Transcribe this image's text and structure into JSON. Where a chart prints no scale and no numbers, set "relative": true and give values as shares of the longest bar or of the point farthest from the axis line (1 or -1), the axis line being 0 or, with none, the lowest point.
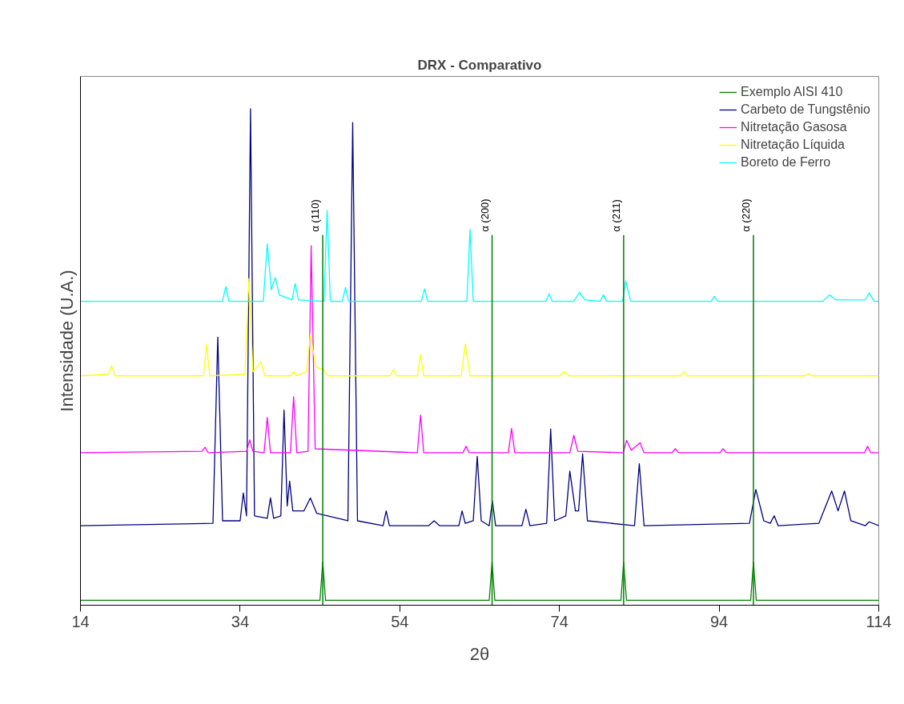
{
  "chart_data": {
    "type": "line",
    "title": "DRX - Comparativo",
    "xlabel": "2θ",
    "ylabel": "Intensidade (U.A.)",
    "relative": true,
    "xlim": [
      14,
      114
    ],
    "xticks": [
      14,
      34,
      54,
      74,
      94,
      114
    ],
    "grid": false,
    "legend": "top right",
    "marker": "none",
    "line_style": "solid",
    "series": [
      {
        "name": "Exemplo AISI 410",
        "color": "#008000",
        "x": [
          14,
          44.0,
          44.35,
          44.7,
          65.2,
          65.56,
          65.9,
          81.7,
          82.04,
          82.4,
          97.95,
          98.3,
          98.65,
          114
        ],
        "values": [
          0.01,
          0.01,
          0.087,
          0.01,
          0.01,
          0.087,
          0.01,
          0.01,
          0.087,
          0.01,
          0.01,
          0.087,
          0.01,
          0.01
        ]
      },
      {
        "name": "Carbeto de Tungstênio",
        "color": "#000080",
        "x": [
          14,
          30.6,
          31.2,
          31.8,
          34.0,
          34.4,
          34.8,
          35.3,
          35.8,
          37.4,
          37.8,
          38.2,
          39.1,
          39.5,
          39.9,
          40.2,
          40.6,
          42.0,
          42.8,
          43.6,
          47.5,
          48.1,
          48.7,
          51.9,
          52.3,
          52.7,
          57.6,
          58.3,
          59.0,
          61.4,
          61.8,
          62.2,
          63.2,
          63.7,
          64.2,
          65.2,
          65.6,
          66.0,
          69.3,
          69.8,
          70.3,
          72.4,
          72.9,
          73.4,
          74.8,
          75.3,
          76.0,
          76.4,
          76.9,
          77.5,
          83.4,
          84.0,
          84.6,
          97.8,
          98.6,
          99.6,
          100.4,
          100.9,
          101.4,
          106.5,
          108.1,
          108.9,
          109.7,
          110.5,
          112.3,
          112.8,
          114
        ],
        "values": [
          0.16,
          0.165,
          0.54,
          0.17,
          0.17,
          0.226,
          0.18,
          1.0,
          0.18,
          0.175,
          0.216,
          0.175,
          0.18,
          0.393,
          0.2,
          0.25,
          0.19,
          0.19,
          0.216,
          0.185,
          0.17,
          0.972,
          0.17,
          0.16,
          0.19,
          0.16,
          0.16,
          0.17,
          0.16,
          0.16,
          0.19,
          0.165,
          0.17,
          0.3,
          0.17,
          0.16,
          0.21,
          0.16,
          0.16,
          0.193,
          0.16,
          0.165,
          0.355,
          0.17,
          0.18,
          0.27,
          0.19,
          0.19,
          0.305,
          0.17,
          0.16,
          0.285,
          0.16,
          0.165,
          0.233,
          0.17,
          0.165,
          0.18,
          0.16,
          0.165,
          0.23,
          0.19,
          0.23,
          0.17,
          0.16,
          0.168,
          0.16
        ]
      },
      {
        "name": "Nitretação Gasosa",
        "color": "#ff00ff",
        "x": [
          14,
          29.2,
          29.6,
          30.0,
          34.8,
          35.2,
          35.6,
          37.0,
          37.4,
          37.8,
          40.3,
          40.7,
          41.1,
          42.5,
          42.9,
          43.4,
          56.2,
          56.6,
          57.0,
          61.9,
          62.3,
          62.7,
          67.6,
          68.0,
          68.4,
          75.3,
          75.8,
          76.3,
          82.0,
          82.4,
          83.0,
          84.1,
          84.6,
          88.1,
          88.5,
          88.9,
          94.1,
          94.5,
          94.9,
          112.2,
          112.6,
          113.0,
          114
        ],
        "values": [
          0.307,
          0.31,
          0.318,
          0.307,
          0.31,
          0.333,
          0.31,
          0.307,
          0.378,
          0.307,
          0.307,
          0.42,
          0.307,
          0.31,
          0.724,
          0.315,
          0.307,
          0.383,
          0.307,
          0.307,
          0.32,
          0.307,
          0.307,
          0.356,
          0.307,
          0.307,
          0.342,
          0.31,
          0.307,
          0.332,
          0.312,
          0.327,
          0.307,
          0.307,
          0.315,
          0.307,
          0.307,
          0.315,
          0.307,
          0.307,
          0.32,
          0.307,
          0.307
        ]
      },
      {
        "name": "Nitretação Líquida",
        "color": "#ffff00",
        "x": [
          14,
          17.5,
          17.9,
          18.3,
          29.4,
          29.8,
          30.2,
          34.6,
          35.1,
          35.6,
          36.6,
          37.1,
          40.3,
          40.7,
          41.1,
          42.3,
          42.8,
          43.5,
          44.5,
          45.0,
          52.8,
          53.2,
          53.6,
          56.2,
          56.6,
          57.0,
          61.7,
          62.2,
          62.8,
          74.0,
          74.6,
          75.2,
          89.2,
          89.6,
          90.0,
          104.8,
          105.2,
          105.6,
          114
        ],
        "values": [
          0.462,
          0.465,
          0.482,
          0.462,
          0.462,
          0.525,
          0.462,
          0.465,
          0.658,
          0.47,
          0.49,
          0.462,
          0.462,
          0.47,
          0.462,
          0.47,
          0.545,
          0.48,
          0.474,
          0.462,
          0.462,
          0.474,
          0.462,
          0.462,
          0.505,
          0.462,
          0.462,
          0.526,
          0.462,
          0.462,
          0.47,
          0.462,
          0.462,
          0.47,
          0.462,
          0.462,
          0.466,
          0.462,
          0.462
        ]
      },
      {
        "name": "Boreto de Ferro",
        "color": "#00ffff",
        "x": [
          14,
          31.8,
          32.2,
          32.6,
          36.9,
          37.4,
          37.9,
          38.4,
          38.9,
          40.5,
          40.9,
          41.3,
          44.5,
          44.9,
          45.3,
          46.8,
          47.2,
          47.6,
          56.7,
          57.1,
          57.5,
          62.4,
          62.8,
          63.2,
          72.3,
          72.7,
          73.1,
          75.8,
          76.5,
          77.2,
          79.1,
          79.5,
          79.9,
          81.9,
          82.3,
          82.9,
          93.0,
          93.4,
          93.8,
          107.0,
          107.8,
          108.6,
          112.3,
          112.8,
          113.4,
          114
        ],
        "values": [
          0.612,
          0.612,
          0.642,
          0.612,
          0.612,
          0.728,
          0.635,
          0.66,
          0.625,
          0.615,
          0.648,
          0.615,
          0.612,
          0.795,
          0.612,
          0.612,
          0.64,
          0.612,
          0.612,
          0.637,
          0.612,
          0.612,
          0.757,
          0.612,
          0.612,
          0.627,
          0.612,
          0.612,
          0.63,
          0.615,
          0.612,
          0.625,
          0.612,
          0.612,
          0.653,
          0.612,
          0.612,
          0.622,
          0.612,
          0.612,
          0.625,
          0.615,
          0.615,
          0.629,
          0.612,
          0.612
        ]
      }
    ],
    "ref_lines": [
      {
        "axis": "x",
        "value": 44.35,
        "label": "α (110)",
        "color": "#008000"
      },
      {
        "axis": "x",
        "value": 65.56,
        "label": "α (200)",
        "color": "#008000"
      },
      {
        "axis": "x",
        "value": 82.04,
        "label": "α (211)",
        "color": "#008000"
      },
      {
        "axis": "x",
        "value": 98.3,
        "label": "α (220)",
        "color": "#008000"
      }
    ]
  }
}
